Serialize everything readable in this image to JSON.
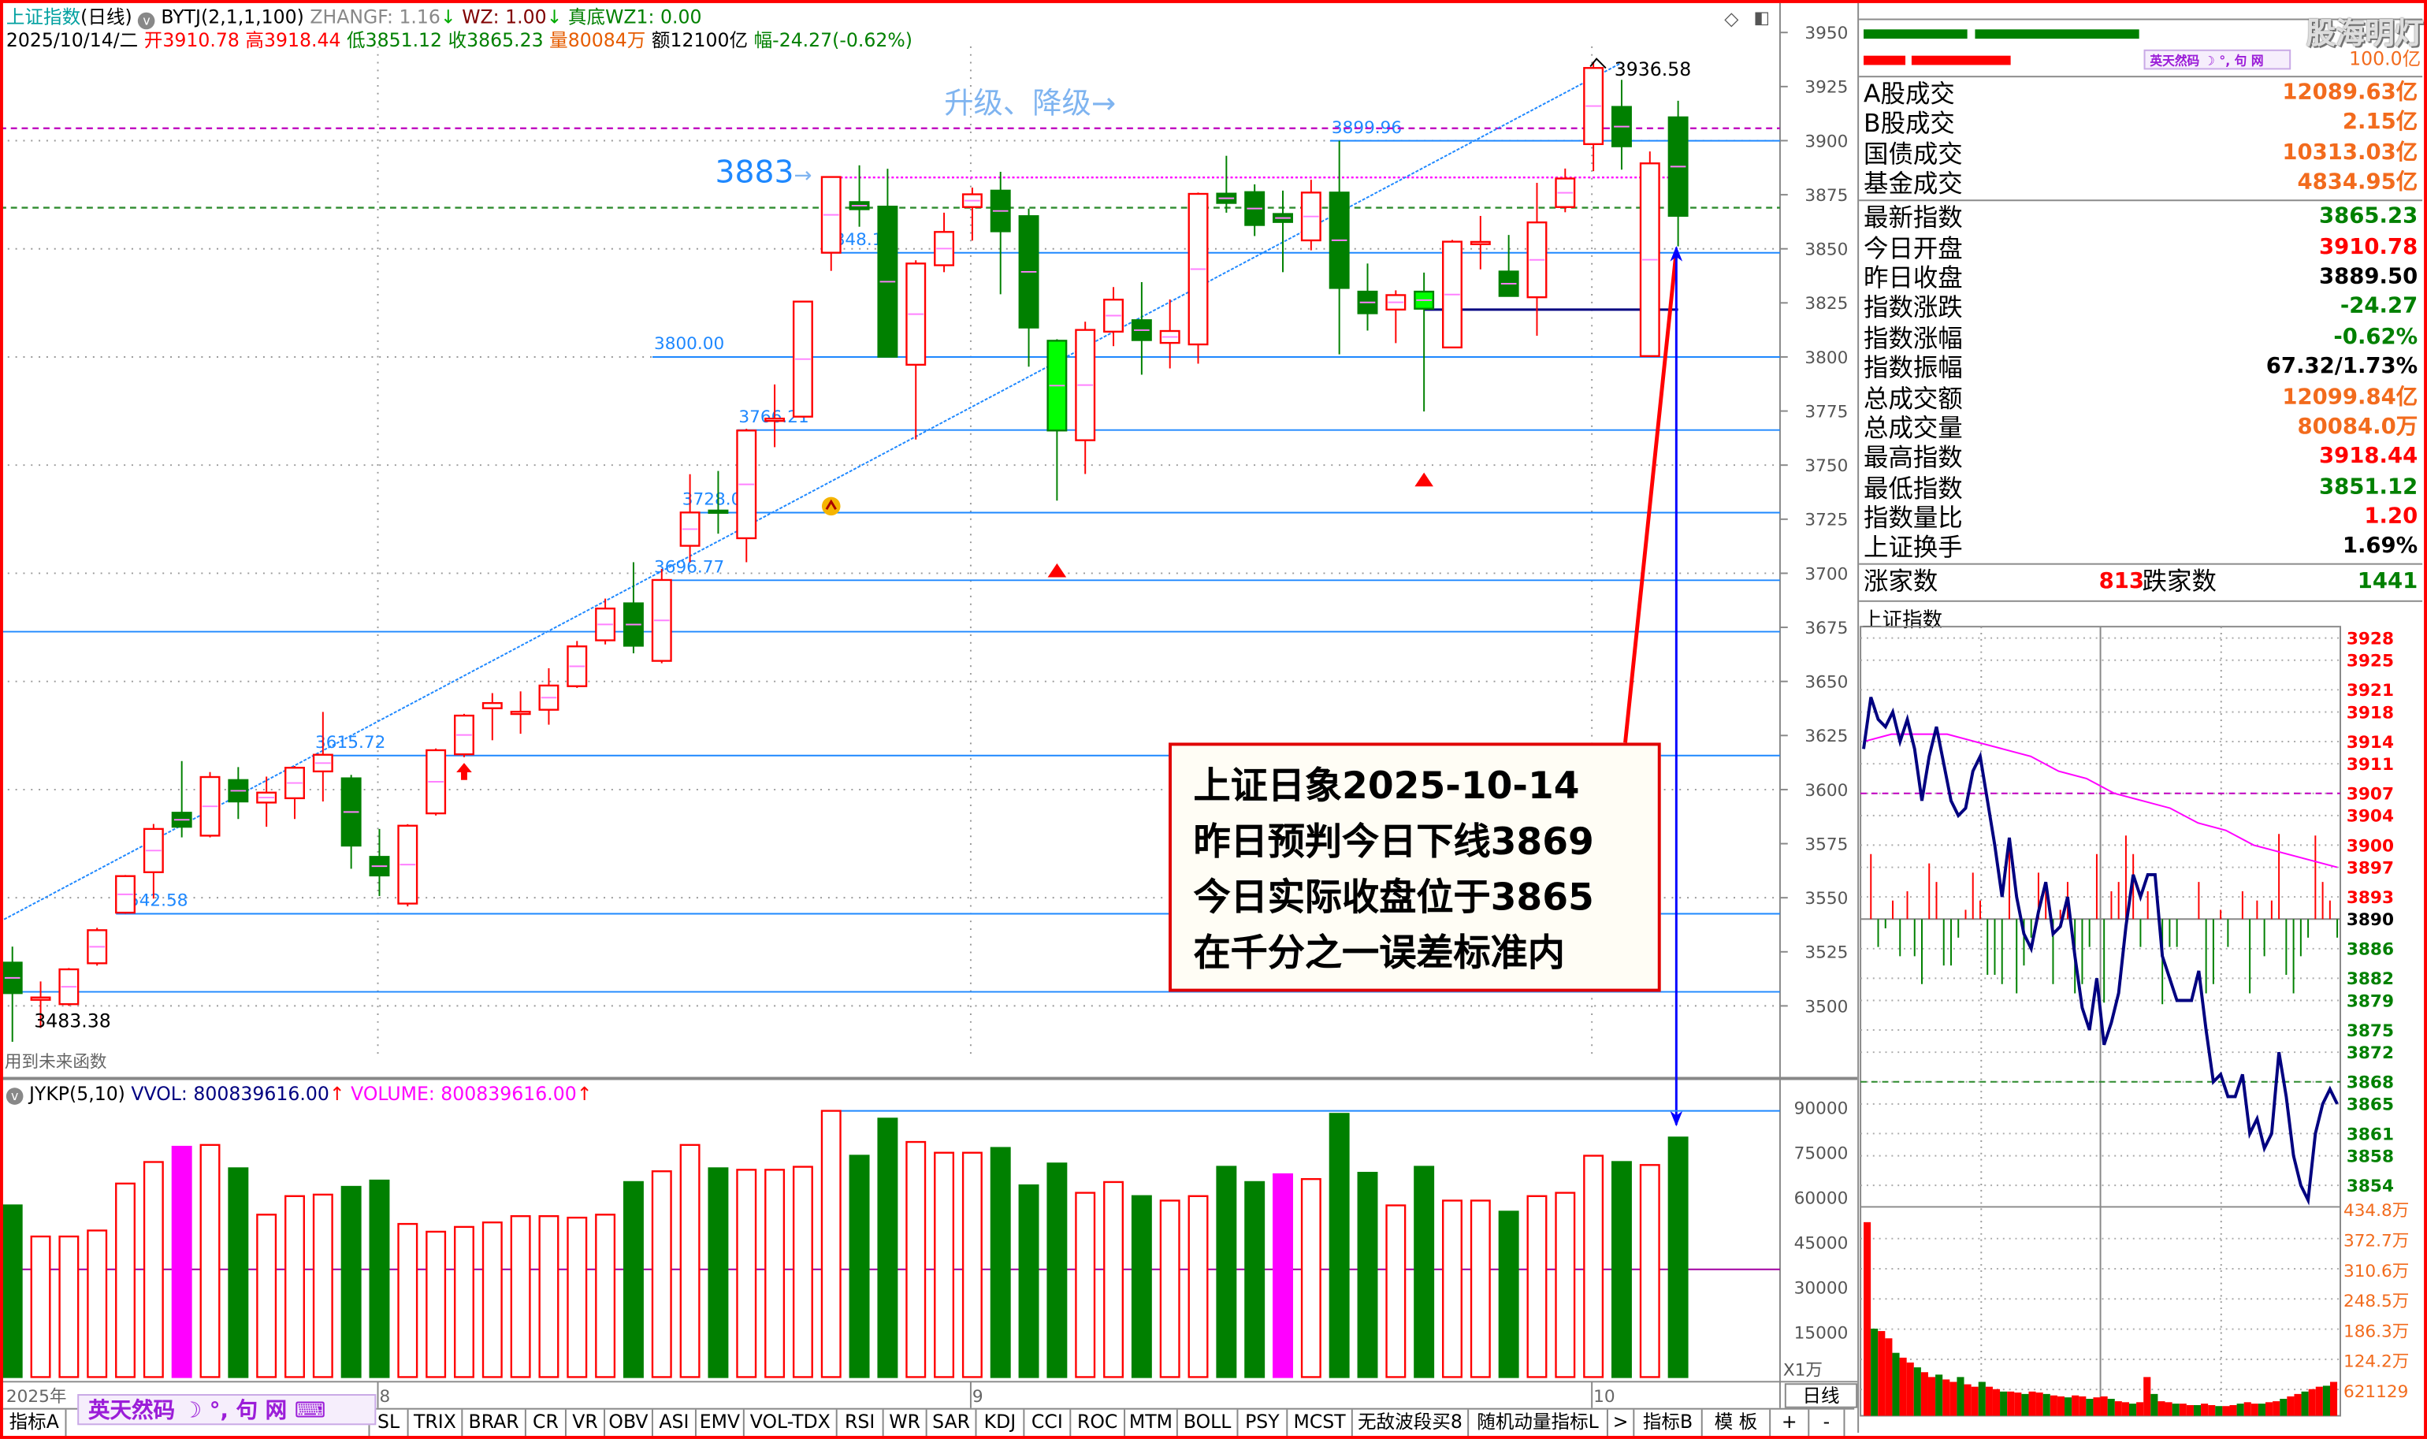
{
  "header": {
    "title": "上证指数",
    "period": "(日线)",
    "indicator": "BYTJ(2,1,1,100)",
    "zhangf": "ZHANGF: 1.16",
    "wz": "WZ: 1.00",
    "zhendi": "真底",
    "wz1": "WZ1: 0.00",
    "down_arrow": "↓",
    "date": "2025/10/14/二",
    "open_label": "开",
    "open": "3910.78",
    "high_label": "高",
    "high": "3918.44",
    "low_label": "低",
    "low": "3851.12",
    "close_label": "收",
    "close": "3865.23",
    "vol_label": "量",
    "vol": "80084万",
    "amt_label": "额",
    "amt": "12100亿",
    "chg_label": "幅",
    "chg": "-24.27(-0.62%)"
  },
  "window_icons": [
    "diamond-icon",
    "restore-window-icon"
  ],
  "annotations": {
    "upgrade_text": "升级、降级→",
    "target_value": "3883",
    "target_arrow": "→",
    "high_label": "3936.58",
    "low_label": "3483.38",
    "future_fn_warning": "用到未来函数",
    "note_lines": [
      "上证日象2025-10-14",
      "昨日预判今日下线3869",
      "今日实际收盘位于3865",
      "在千分之一误差标准内"
    ]
  },
  "chart_data": {
    "type": "candlestick",
    "ylim": [
      3480,
      3955
    ],
    "y_ticks": [
      "3950",
      "3925",
      "3900",
      "3875",
      "3850",
      "3825",
      "3800",
      "3775",
      "3750",
      "3725",
      "3700",
      "3675",
      "3650",
      "3625",
      "3600",
      "3575",
      "3550",
      "3525",
      "3500"
    ],
    "ohlc": [
      [
        3520.0,
        3527.4,
        3483.4,
        3505.9
      ],
      [
        3502.8,
        3511.3,
        3489.8,
        3503.9
      ],
      [
        3500.8,
        3517.5,
        3500.0,
        3516.9
      ],
      [
        3519.7,
        3536.1,
        3518.6,
        3535.0
      ],
      [
        3543.1,
        3560.5,
        3542.6,
        3560.0
      ],
      [
        3561.8,
        3584.1,
        3549.6,
        3581.8
      ],
      [
        3589.3,
        3613.2,
        3577.9,
        3582.8
      ],
      [
        3578.7,
        3608.1,
        3577.9,
        3605.8
      ],
      [
        3604.4,
        3610.4,
        3586.4,
        3594.5
      ],
      [
        3594.0,
        3606.0,
        3582.8,
        3598.6
      ],
      [
        3596.0,
        3610.9,
        3586.4,
        3610.1
      ],
      [
        3608.4,
        3635.9,
        3594.5,
        3616.1
      ],
      [
        3605.2,
        3606.8,
        3563.4,
        3574.1
      ],
      [
        3568.9,
        3581.8,
        3550.8,
        3560.3
      ],
      [
        3547.3,
        3584.0,
        3546.0,
        3583.3
      ],
      [
        3589.0,
        3619.0,
        3588.0,
        3618.2
      ],
      [
        3616.3,
        3635.0,
        3615.0,
        3634.2
      ],
      [
        3637.6,
        3644.6,
        3622.8,
        3640.0
      ],
      [
        3635.4,
        3645.4,
        3625.8,
        3636.0
      ],
      [
        3636.9,
        3656.1,
        3630.0,
        3648.1
      ],
      [
        3647.8,
        3668.7,
        3647.0,
        3666.2
      ],
      [
        3669.0,
        3688.3,
        3667.1,
        3683.7
      ],
      [
        3686.1,
        3705.1,
        3663.0,
        3666.5
      ],
      [
        3659.5,
        3702.0,
        3658.4,
        3696.9
      ],
      [
        3712.7,
        3745.8,
        3705.1,
        3728.1
      ],
      [
        3729.0,
        3747.3,
        3718.3,
        3728.3
      ],
      [
        3716.2,
        3766.8,
        3705.1,
        3766.0
      ],
      [
        3771.0,
        3787.3,
        3758.3,
        3771.5
      ],
      [
        3772.4,
        3826.0,
        3772.0,
        3825.6
      ],
      [
        3848.2,
        3883.5,
        3839.8,
        3883.2
      ],
      [
        3871.6,
        3888.6,
        3860.2,
        3868.3
      ],
      [
        3869.5,
        3887.0,
        3800.0,
        3800.1
      ],
      [
        3796.4,
        3844.7,
        3761.8,
        3843.2
      ],
      [
        3842.4,
        3866.7,
        3839.2,
        3857.8
      ],
      [
        3869.3,
        3878.3,
        3853.8,
        3875.2
      ],
      [
        3876.9,
        3885.6,
        3829.0,
        3858.1
      ],
      [
        3865.1,
        3868.6,
        3795.5,
        3813.6
      ],
      [
        3807.5,
        3808.2,
        3733.6,
        3766.0
      ],
      [
        3761.5,
        3816.3,
        3745.9,
        3812.5
      ],
      [
        3811.7,
        3832.3,
        3805.0,
        3826.5
      ],
      [
        3817.0,
        3834.6,
        3791.8,
        3807.8
      ],
      [
        3806.5,
        3826.6,
        3794.7,
        3812.0
      ],
      [
        3805.8,
        3876.0,
        3796.9,
        3875.4
      ],
      [
        3875.5,
        3893.0,
        3866.7,
        3871.2
      ],
      [
        3876.2,
        3879.8,
        3855.9,
        3861.0
      ],
      [
        3866.1,
        3876.9,
        3839.2,
        3862.4
      ],
      [
        3853.9,
        3881.9,
        3849.3,
        3876.0
      ],
      [
        3876.0,
        3899.96,
        3801.2,
        3831.9
      ],
      [
        3830.2,
        3843.2,
        3812.2,
        3820.2
      ],
      [
        3821.9,
        3830.8,
        3806.4,
        3828.6
      ],
      [
        3830.2,
        3839.0,
        3774.8,
        3822.3
      ],
      [
        3804.4,
        3854.1,
        3804.0,
        3853.3
      ],
      [
        3852.7,
        3865.2,
        3840.5,
        3853.2
      ],
      [
        3839.5,
        3856.4,
        3828.0,
        3828.2
      ],
      [
        3827.6,
        3880.5,
        3809.8,
        3862.2
      ],
      [
        3869.3,
        3887.1,
        3866.9,
        3882.5
      ],
      [
        3898.4,
        3936.58,
        3885.9,
        3933.6
      ],
      [
        3915.6,
        3928.1,
        3886.6,
        3897.4
      ],
      [
        3800.4,
        3895.0,
        3800.0,
        3889.5
      ],
      [
        3910.78,
        3918.44,
        3851.12,
        3865.23
      ]
    ],
    "highlight_candles": [
      37,
      50
    ],
    "levels": [
      {
        "value": 3899.96,
        "label": "3899.96",
        "start": 47
      },
      {
        "value": 3848.16,
        "label": "3848.16",
        "start": 29
      },
      {
        "value": 3800.0,
        "label": "3800.00",
        "start": 23
      },
      {
        "value": 3766.21,
        "label": "3766.21",
        "start": 26
      },
      {
        "value": 3728.03,
        "label": "3728.03",
        "start": 24
      },
      {
        "value": 3696.77,
        "label": "3696.77",
        "start": 23
      },
      {
        "value": 3673,
        "label": "",
        "start": -1
      },
      {
        "value": 3615.72,
        "label": "3615.72",
        "start": 11
      },
      {
        "value": 3542.58,
        "label": "3542.58",
        "start": 4
      },
      {
        "value": 3506.5,
        "label": "",
        "start": -1
      }
    ],
    "ref_lines": [
      {
        "value": 3905.7,
        "style": "dashed",
        "color": "#c000c0"
      },
      {
        "value": 3883,
        "style": "dotted",
        "color": "#ff00ff",
        "start": 29,
        "end": 59
      },
      {
        "value": 3869,
        "style": "dashed",
        "color": "#2e8b2e"
      },
      {
        "value": 3821.9,
        "style": "solid",
        "color": "#000080",
        "start": 50,
        "end": 59
      }
    ],
    "trendline": {
      "from": [
        0,
        3539
      ],
      "to": [
        57,
        3936
      ]
    },
    "signals": [
      {
        "type": "red-up-arrow",
        "candle": 16,
        "value": 3608
      },
      {
        "type": "red-triangle",
        "candle": 37,
        "value": 3701
      },
      {
        "type": "red-triangle",
        "candle": 50,
        "value": 3743
      },
      {
        "type": "orange-fire-icon",
        "candle": 29,
        "value": 3731
      }
    ],
    "x_labels": [
      {
        "label": "2025年",
        "candle": 0
      },
      {
        "label": "8",
        "candle": 13
      },
      {
        "label": "9",
        "candle": 34
      },
      {
        "label": "10",
        "candle": 56
      }
    ],
    "volume": [
      57400,
      47000,
      47000,
      49000,
      64700,
      71900,
      77000,
      77600,
      69800,
      54300,
      60500,
      61000,
      63600,
      65700,
      51200,
      48600,
      50200,
      51700,
      53800,
      53800,
      53300,
      54300,
      65200,
      68800,
      77600,
      69800,
      69300,
      69300,
      70300,
      89000,
      74000,
      86400,
      78600,
      75000,
      75000,
      76600,
      64100,
      71400,
      61600,
      65200,
      60500,
      59000,
      60500,
      70300,
      65200,
      67800,
      66200,
      88000,
      68300,
      57400,
      70300,
      59000,
      59000,
      55300,
      60500,
      61600,
      74000,
      71900,
      70900,
      80084
    ],
    "volume_highlight": [
      6,
      45
    ],
    "volume_ticks": [
      "90000",
      "75000",
      "60000",
      "45000",
      "30000",
      "15000"
    ],
    "volume_unit": "X1万",
    "volume_lines": [
      {
        "value": 89000,
        "color": "#1e88ff",
        "start": 29
      },
      {
        "value": 36000,
        "color": "#a000a0",
        "start": -1
      }
    ]
  },
  "volume_header": {
    "name": "JYKP(5,10)",
    "vvol": "VVOL: 800839616.00",
    "volume": "VOLUME: 800839616.00",
    "arrow": "↑"
  },
  "period_label": "日线",
  "tabs": [
    "指标A",
    "",
    "SL",
    "TRIX",
    "BRAR",
    "CR",
    "VR",
    "OBV",
    "ASI",
    "EMV",
    "VOL-TDX",
    "RSI",
    "WR",
    "SAR",
    "KDJ",
    "CCI",
    "ROC",
    "MTM",
    "BOLL",
    "PSY",
    "MCST",
    "无敌波段买8",
    "随机动量指标L",
    ">",
    "指标B",
    "模 板",
    "+",
    "-"
  ],
  "ime": {
    "label": "英天然码",
    "moon": "☽",
    "punct": "°,",
    "ju": "句",
    "net": "网",
    "kbd": "⌨"
  },
  "right_panel": {
    "watermark": "股海明灯",
    "bar_value": "100.0亿",
    "rows": [
      {
        "label": "A股成交",
        "value": "12089.63亿",
        "color": "#f26b1d"
      },
      {
        "label": "B股成交",
        "value": "2.15亿",
        "color": "#f26b1d"
      },
      {
        "label": "国债成交",
        "value": "10313.03亿",
        "color": "#f26b1d"
      },
      {
        "label": "基金成交",
        "value": "4834.95亿",
        "color": "#f26b1d"
      },
      {
        "label": "最新指数",
        "value": "3865.23",
        "color": "#008000"
      },
      {
        "label": "今日开盘",
        "value": "3910.78",
        "color": "#ff0000"
      },
      {
        "label": "昨日收盘",
        "value": "3889.50",
        "color": "#000000"
      },
      {
        "label": "指数涨跌",
        "value": "-24.27",
        "color": "#008000"
      },
      {
        "label": "指数涨幅",
        "value": "-0.62%",
        "color": "#008000"
      },
      {
        "label": "指数振幅",
        "value": "67.32/1.73%",
        "color": "#000000"
      },
      {
        "label": "总成交额",
        "value": "12099.84亿",
        "color": "#f26b1d"
      },
      {
        "label": "总成交量",
        "value": "80084.0万",
        "color": "#f26b1d"
      },
      {
        "label": "最高指数",
        "value": "3918.44",
        "color": "#ff0000"
      },
      {
        "label": "最低指数",
        "value": "3851.12",
        "color": "#008000"
      },
      {
        "label": "指数量比",
        "value": "1.20",
        "color": "#ff0000"
      },
      {
        "label": "上证换手",
        "value": "1.69%",
        "color": "#000000"
      }
    ],
    "up_label": "涨家数",
    "up_count": "813",
    "down_label": "跌家数",
    "down_count": "1441",
    "intraday_title": "上证指数"
  },
  "intraday": {
    "prev_close": 3890,
    "price_ticks": [
      "3928",
      "3925",
      "3921",
      "3918",
      "3914",
      "3911",
      "3907",
      "3904",
      "3900",
      "3897",
      "3893",
      "3890",
      "3886",
      "3882",
      "3879",
      "3875",
      "3872",
      "3868",
      "3865",
      "3861",
      "3858",
      "3854"
    ],
    "price": [
      3913,
      3920,
      3917,
      3916,
      3918,
      3914,
      3917,
      3913,
      3906,
      3912,
      3916,
      3911,
      3906,
      3904,
      3905,
      3910,
      3912,
      3906,
      3900,
      3893,
      3901,
      3893,
      3888,
      3886,
      3891,
      3895,
      3888,
      3889,
      3893,
      3885,
      3878,
      3875,
      3882,
      3873,
      3876,
      3880,
      3889,
      3896,
      3893,
      3896,
      3896,
      3885,
      3882,
      3879,
      3879,
      3879,
      3883,
      3875,
      3868,
      3869,
      3866,
      3866,
      3869,
      3861,
      3863,
      3859,
      3861,
      3872,
      3866,
      3858,
      3854,
      3852,
      3861,
      3865,
      3867,
      3865
    ],
    "avg_price": [
      3914,
      3915,
      3915,
      3915,
      3914,
      3913,
      3912,
      3910,
      3909,
      3907,
      3906,
      3905,
      3903,
      3902,
      3900,
      3899,
      3898,
      3897
    ],
    "volume_ticks": [
      "434.8万",
      "372.7万",
      "310.6万",
      "248.5万",
      "186.3万",
      "124.2万",
      "621129"
    ],
    "volume_wan": [
      400,
      180,
      175,
      160,
      130,
      120,
      110,
      100,
      90,
      80,
      85,
      75,
      70,
      80,
      65,
      60,
      70,
      60,
      55,
      50,
      50,
      48,
      45,
      50,
      48,
      45,
      42,
      40,
      38,
      42,
      40,
      35,
      38,
      40,
      35,
      30,
      28,
      25,
      28,
      80,
      45,
      30,
      28,
      25,
      25,
      22,
      22,
      25,
      22,
      20,
      20,
      22,
      25,
      28,
      25,
      25,
      28,
      30,
      35,
      40,
      45,
      50,
      55,
      60,
      62,
      70
    ]
  }
}
